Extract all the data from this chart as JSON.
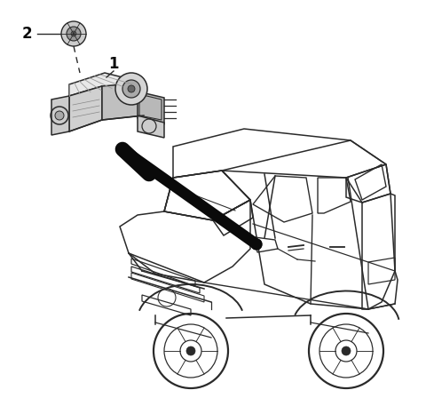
{
  "background_color": "#ffffff",
  "line_color": "#2a2a2a",
  "label_fontsize": 12,
  "figsize": [
    4.8,
    4.57
  ],
  "dpi": 100,
  "label2_text": "2",
  "label1_text": "1",
  "arrow_color": "#0a0a0a",
  "arrow_lw": 6.0,
  "sensor_dot_color": "#0a0a0a"
}
